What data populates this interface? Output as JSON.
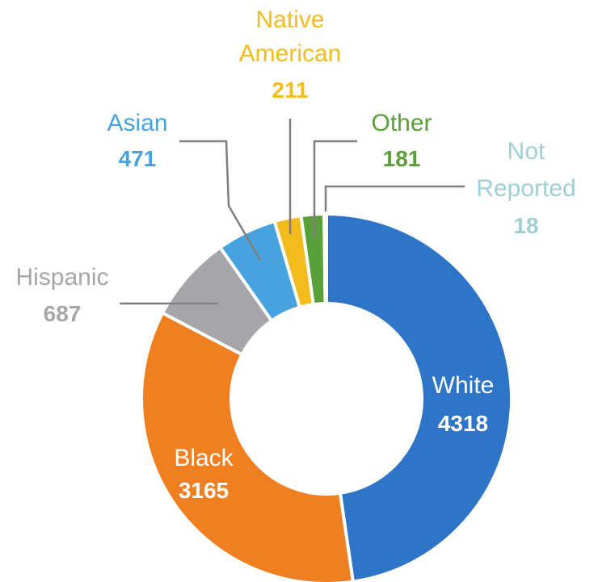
{
  "chart_data": {
    "type": "pie",
    "variant": "donut",
    "title": "",
    "slices": [
      {
        "label": "White",
        "value": 4318,
        "color": "#2e75c8"
      },
      {
        "label": "Black",
        "value": 3165,
        "color": "#f07f22"
      },
      {
        "label": "Hispanic",
        "value": 687,
        "color": "#a6a6a8"
      },
      {
        "label": "Asian",
        "value": 471,
        "color": "#47a3e0"
      },
      {
        "label": "Native American",
        "value": 211,
        "color": "#f4bb1c"
      },
      {
        "label": "Other",
        "value": 181,
        "color": "#5aa03a"
      },
      {
        "label": "Not Reported",
        "value": 18,
        "color": "#9fd0d4"
      }
    ],
    "label_color_leader": "#7f7f7f",
    "inside_label_color": "#ffffff"
  }
}
